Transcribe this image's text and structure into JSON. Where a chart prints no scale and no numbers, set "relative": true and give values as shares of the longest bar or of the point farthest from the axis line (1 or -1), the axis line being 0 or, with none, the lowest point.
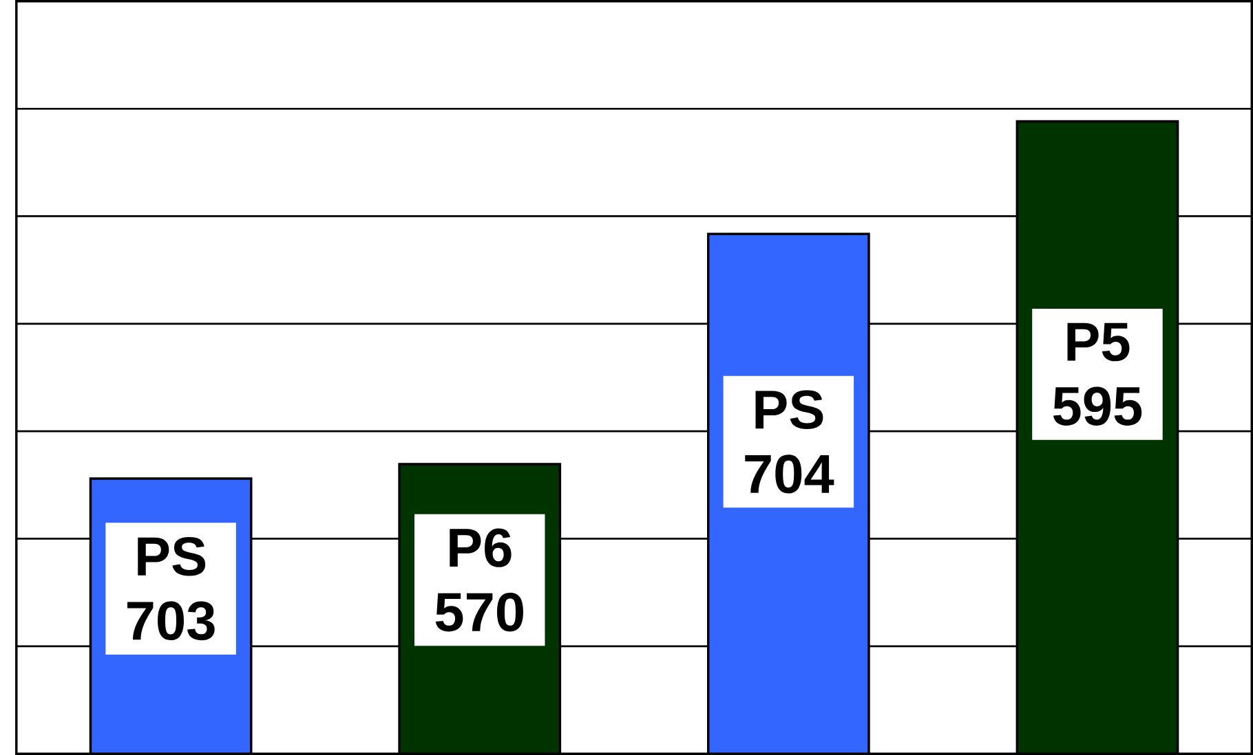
{
  "chart_data": {
    "type": "bar",
    "relative": true,
    "grid": "y",
    "categories": [
      "PS 703",
      "P6 570",
      "PS 704",
      "P5 595"
    ],
    "values": [
      0.435,
      0.458,
      0.822,
      1.0
    ],
    "colors": [
      "#3366ff",
      "#003300",
      "#3366ff",
      "#003300"
    ]
  }
}
